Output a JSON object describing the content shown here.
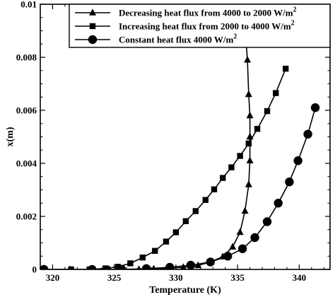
{
  "chart_data": {
    "type": "line",
    "xlabel": "Temperature (K)",
    "ylabel": "x(m)",
    "xlim": [
      319,
      342.5
    ],
    "ylim": [
      0,
      0.01
    ],
    "xticks": [
      320,
      325,
      330,
      335,
      340
    ],
    "xtick_labels": [
      "320",
      "325",
      "330",
      "335",
      "340"
    ],
    "yticks": [
      0,
      0.002,
      0.004,
      0.006,
      0.008,
      0.01
    ],
    "ytick_labels": [
      "0",
      "0.002",
      "0.004",
      "0.006",
      "0.008",
      "0.01"
    ],
    "legend_position": "top-right",
    "grid": false,
    "series": [
      {
        "name": "Decreasing heat flux from 4000 to 2000 W/m",
        "name_sup": "2",
        "marker": "triangle",
        "color": "#000000",
        "x": [
          319.3,
          321.4,
          323.2,
          324.6,
          325.8,
          327.0,
          328.2,
          329.4,
          330.6,
          331.8,
          332.8,
          333.8,
          334.6,
          335.2,
          335.6,
          335.9,
          336.0,
          336.0,
          336.0,
          335.9,
          335.8,
          335.6
        ],
        "y": [
          0.0,
          0.0,
          0.0,
          0.0,
          0.0,
          0.0,
          2e-05,
          4e-05,
          8e-05,
          0.00015,
          0.00028,
          0.00048,
          0.00085,
          0.0014,
          0.0022,
          0.0032,
          0.0041,
          0.005,
          0.0058,
          0.0066,
          0.0079,
          0.0092
        ]
      },
      {
        "name": "Increasing heat flux from 2000 to 4000 W/m",
        "name_sup": "2",
        "marker": "square",
        "color": "#000000",
        "x": [
          319.3,
          321.5,
          323.0,
          324.3,
          325.3,
          326.3,
          327.3,
          328.3,
          329.2,
          330.0,
          330.8,
          331.6,
          332.4,
          333.1,
          333.8,
          334.5,
          335.2,
          335.9,
          336.6,
          337.4,
          338.1,
          338.9
        ],
        "y": [
          0.0,
          0.0,
          0.0,
          4e-05,
          0.0001,
          0.00023,
          0.00045,
          0.0007,
          0.00105,
          0.0014,
          0.00182,
          0.0022,
          0.00262,
          0.00302,
          0.00345,
          0.00385,
          0.00428,
          0.00475,
          0.0053,
          0.00597,
          0.00665,
          0.00757
        ]
      },
      {
        "name": "Constant heat flux 4000 W/m",
        "name_sup": "2",
        "marker": "circle",
        "color": "#000000",
        "x": [
          319.3,
          323.2,
          325.6,
          327.6,
          329.5,
          331.2,
          332.8,
          334.2,
          335.4,
          336.4,
          337.4,
          338.3,
          339.2,
          339.9,
          340.7,
          341.3
        ],
        "y": [
          0.0,
          0.0,
          0.0,
          3e-05,
          8e-05,
          0.00016,
          0.00028,
          0.0005,
          0.00078,
          0.0012,
          0.0018,
          0.0025,
          0.0033,
          0.0041,
          0.0051,
          0.0061
        ]
      }
    ]
  }
}
